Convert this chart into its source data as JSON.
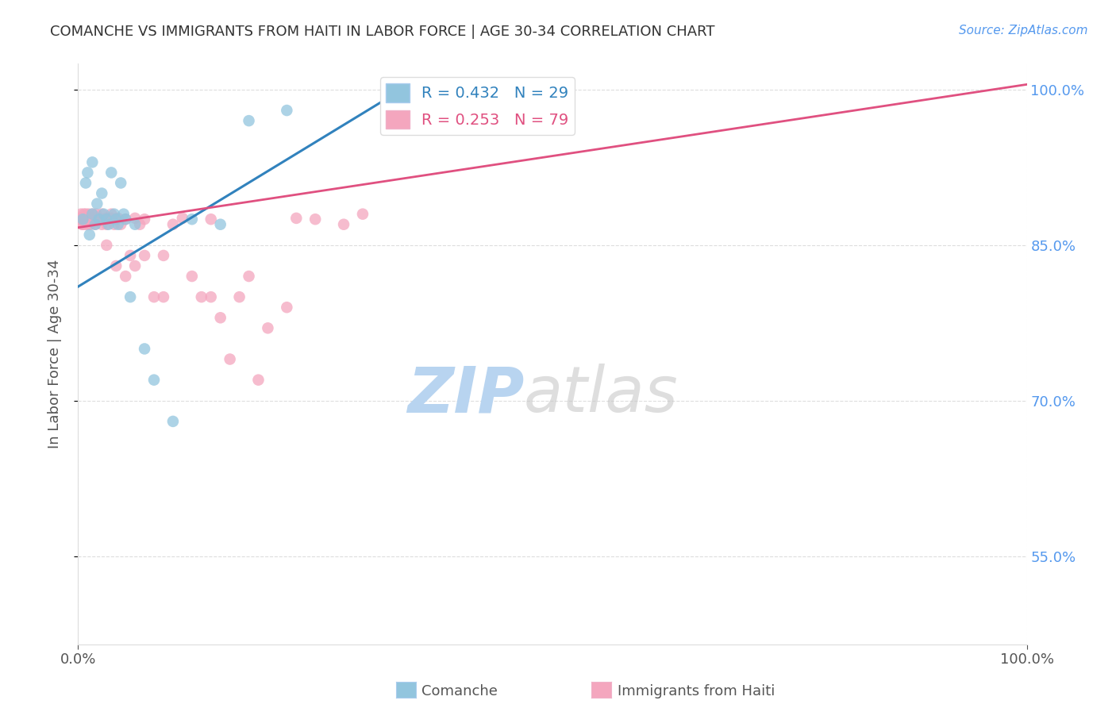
{
  "title": "COMANCHE VS IMMIGRANTS FROM HAITI IN LABOR FORCE | AGE 30-34 CORRELATION CHART",
  "source_text": "Source: ZipAtlas.com",
  "ylabel": "In Labor Force | Age 30-34",
  "legend_r_blue": "R = 0.432",
  "legend_n_blue": "N = 29",
  "legend_r_pink": "R = 0.253",
  "legend_n_pink": "N = 79",
  "blue_color": "#92c5de",
  "blue_line_color": "#3182bd",
  "pink_color": "#f4a6be",
  "pink_line_color": "#e05080",
  "blue_scatter_x": [
    0.005,
    0.008,
    0.01,
    0.012,
    0.015,
    0.015,
    0.018,
    0.02,
    0.022,
    0.025,
    0.027,
    0.03,
    0.032,
    0.035,
    0.038,
    0.04,
    0.042,
    0.045,
    0.048,
    0.05,
    0.055,
    0.06,
    0.07,
    0.08,
    0.1,
    0.12,
    0.15,
    0.18,
    0.22
  ],
  "blue_scatter_y": [
    0.875,
    0.91,
    0.92,
    0.86,
    0.93,
    0.88,
    0.87,
    0.89,
    0.875,
    0.9,
    0.88,
    0.875,
    0.87,
    0.92,
    0.88,
    0.875,
    0.87,
    0.91,
    0.88,
    0.875,
    0.8,
    0.87,
    0.75,
    0.72,
    0.68,
    0.875,
    0.87,
    0.97,
    0.98
  ],
  "pink_scatter_x": [
    0.002,
    0.003,
    0.004,
    0.005,
    0.005,
    0.006,
    0.006,
    0.007,
    0.008,
    0.008,
    0.009,
    0.01,
    0.01,
    0.011,
    0.012,
    0.013,
    0.014,
    0.015,
    0.015,
    0.016,
    0.017,
    0.018,
    0.019,
    0.02,
    0.022,
    0.025,
    0.027,
    0.03,
    0.03,
    0.032,
    0.035,
    0.035,
    0.038,
    0.04,
    0.042,
    0.045,
    0.05,
    0.055,
    0.06,
    0.065,
    0.07,
    0.08,
    0.09,
    0.1,
    0.11,
    0.12,
    0.13,
    0.14,
    0.15,
    0.17,
    0.19,
    0.22,
    0.25,
    0.28,
    0.3,
    0.18,
    0.2,
    0.23,
    0.16,
    0.14,
    0.09,
    0.07,
    0.06,
    0.05,
    0.04,
    0.03,
    0.025,
    0.02,
    0.018,
    0.015,
    0.013,
    0.011,
    0.008,
    0.006,
    0.004,
    0.003,
    0.002,
    0.002,
    0.003
  ],
  "pink_scatter_y": [
    0.875,
    0.88,
    0.87,
    0.876,
    0.87,
    0.875,
    0.876,
    0.875,
    0.87,
    0.88,
    0.876,
    0.875,
    0.87,
    0.88,
    0.875,
    0.87,
    0.876,
    0.88,
    0.875,
    0.876,
    0.875,
    0.87,
    0.88,
    0.876,
    0.875,
    0.88,
    0.875,
    0.876,
    0.87,
    0.875,
    0.88,
    0.876,
    0.87,
    0.875,
    0.876,
    0.87,
    0.875,
    0.84,
    0.876,
    0.87,
    0.875,
    0.8,
    0.84,
    0.87,
    0.876,
    0.82,
    0.8,
    0.875,
    0.78,
    0.8,
    0.72,
    0.79,
    0.875,
    0.87,
    0.88,
    0.82,
    0.77,
    0.876,
    0.74,
    0.8,
    0.8,
    0.84,
    0.83,
    0.82,
    0.83,
    0.85,
    0.87,
    0.876,
    0.875,
    0.876,
    0.875,
    0.876,
    0.875,
    0.88,
    0.876,
    0.875,
    0.876,
    0.875,
    0.876
  ],
  "watermark_zip_color": "#b8d4f0",
  "watermark_atlas_color": "#c8c8c8",
  "background_color": "#ffffff",
  "grid_color": "#dddddd",
  "title_color": "#333333",
  "axis_label_color": "#555555",
  "right_axis_color": "#5599ee",
  "xmin": 0.0,
  "xmax": 1.0,
  "ymin": 0.465,
  "ymax": 1.025,
  "y_ticks": [
    0.55,
    0.7,
    0.85,
    1.0
  ],
  "y_tick_labels": [
    "55.0%",
    "70.0%",
    "85.0%",
    "100.0%"
  ],
  "blue_line_x0": 0.0,
  "blue_line_y0": 0.81,
  "blue_line_x1": 0.35,
  "blue_line_y1": 1.005,
  "pink_line_x0": 0.0,
  "pink_line_y0": 0.867,
  "pink_line_x1": 1.0,
  "pink_line_y1": 1.005
}
